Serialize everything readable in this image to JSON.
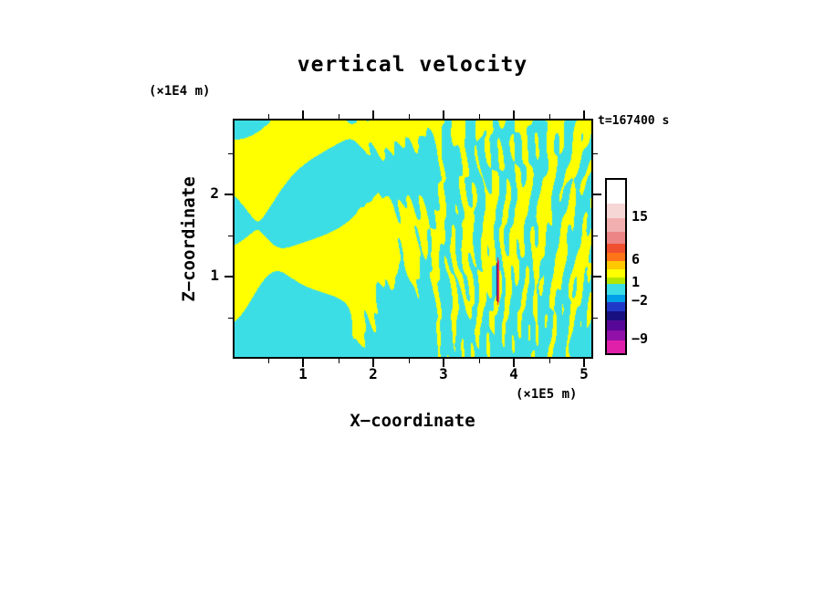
{
  "title": "vertical velocity",
  "time_label": "t=167400 s",
  "axes": {
    "x": {
      "label": "X−coordinate",
      "unit": "(×1E5 m)",
      "major_ticks": [
        1,
        2,
        3,
        4,
        5
      ],
      "minor_ticks": [
        0.5,
        1.5,
        2.5,
        3.5,
        4.5
      ],
      "range": [
        0,
        5.12
      ]
    },
    "z": {
      "label": "Z−coordinate",
      "unit": "(×1E4 m)",
      "major_ticks": [
        1,
        2
      ],
      "minor_ticks": [
        0.5,
        1.5,
        2.5
      ],
      "range": [
        0,
        2.92
      ]
    }
  },
  "colorbar": {
    "segments": [
      {
        "color": "#FFFFFF",
        "h": 26
      },
      {
        "color": "#F7D6D6",
        "h": 16
      },
      {
        "color": "#F2AFAF",
        "h": 15
      },
      {
        "color": "#EC8585",
        "h": 13
      },
      {
        "color": "#F05030",
        "h": 10
      },
      {
        "color": "#FF7518",
        "h": 9
      },
      {
        "color": "#FFC800",
        "h": 9
      },
      {
        "color": "#FFFF00",
        "h": 9
      },
      {
        "color": "#B4E600",
        "h": 7
      },
      {
        "color": "#3CDEE6",
        "h": 12
      },
      {
        "color": "#00A0E8",
        "h": 8
      },
      {
        "color": "#2038C8",
        "h": 10
      },
      {
        "color": "#181080",
        "h": 10
      },
      {
        "color": "#580898",
        "h": 11
      },
      {
        "color": "#9010A8",
        "h": 11
      },
      {
        "color": "#E020A8",
        "h": 14
      }
    ],
    "tick_labels": [
      {
        "label": "15",
        "offset": 42
      },
      {
        "label": "6",
        "offset": 89
      },
      {
        "label": "1",
        "offset": 114
      },
      {
        "label": "−2",
        "offset": 134
      },
      {
        "label": "−9",
        "offset": 176
      }
    ]
  },
  "chart_data": {
    "type": "heatmap",
    "title": "vertical velocity",
    "xlabel": "X−coordinate (×1E5 m)",
    "ylabel": "Z−coordinate (×1E4 m)",
    "time_annotation": "t=167400 s",
    "x_range": [
      0,
      5.12
    ],
    "z_range": [
      0,
      2.92
    ],
    "x_tick_values": [
      1,
      2,
      3,
      4,
      5
    ],
    "z_tick_values": [
      1,
      2
    ],
    "contour_levels": [
      -9,
      -2,
      1,
      6,
      15
    ],
    "fill_colors": {
      "negative_band": "#3CDEE6",
      "positive_band": "#FFFF00"
    },
    "field_description": "Two-level filled contour field of vertical velocity: cyan patches correspond to the −2..1 band and yellow patches to the 1..6 band. Large wave-like blobs occupy the left half; fine, nearly vertical striping develops between x≈3 and x≈5; a narrow high-amplitude vertical streak (red / magenta / dark blue, values beyond the ±9 levels) sits near x≈3.8, z≈0.7–1.2.",
    "pattern": {
      "seed": 11,
      "low_waves": 10,
      "high_waves": 9,
      "threshold": 0.03,
      "anomaly": {
        "x": 0.737,
        "y0": 0.58,
        "y1": 0.78,
        "colors": [
          "#1A0890",
          "#FF2000",
          "#DD18A0"
        ]
      }
    }
  }
}
